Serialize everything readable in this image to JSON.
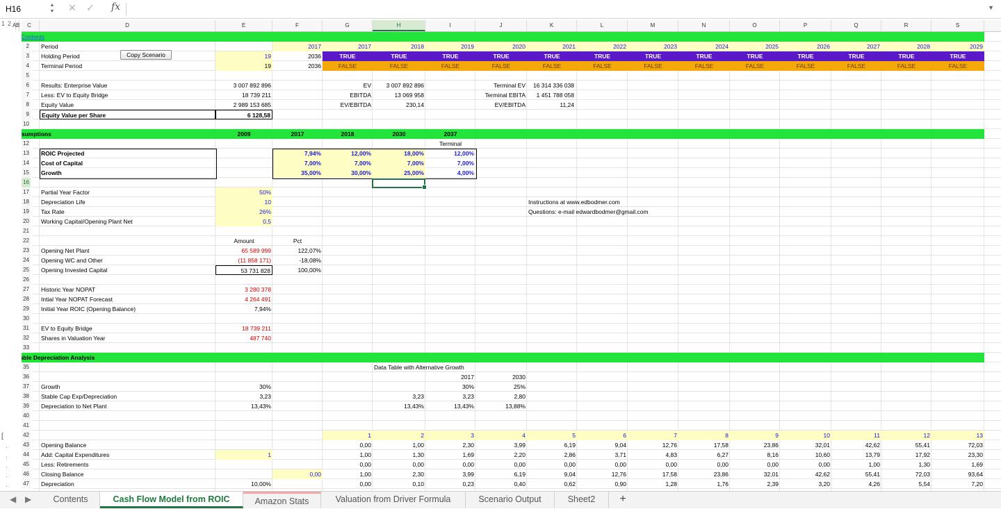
{
  "formula_bar": {
    "name_box": "H16",
    "fx": "fx",
    "value": ""
  },
  "outline_levels": [
    "1",
    "2"
  ],
  "columns": [
    "A",
    "B",
    "C",
    "D",
    "E",
    "F",
    "G",
    "H",
    "I",
    "J",
    "K",
    "L",
    "M",
    "N",
    "O",
    "P",
    "Q",
    "R",
    "S"
  ],
  "selected_column": "H",
  "selected_row": 16,
  "rows": [
    "1",
    "2",
    "3",
    "4",
    "5",
    "6",
    "7",
    "8",
    "9",
    "10",
    "11",
    "12",
    "13",
    "14",
    "15",
    "16",
    "17",
    "18",
    "19",
    "20",
    "21",
    "22",
    "23",
    "24",
    "25",
    "26",
    "27",
    "28",
    "29",
    "30",
    "31",
    "32",
    "33",
    "34",
    "35",
    "36",
    "37",
    "38",
    "39",
    "40",
    "41",
    "42",
    "43",
    "44",
    "45",
    "46",
    "47"
  ],
  "copy_button": "Copy Scenario",
  "colors": {
    "green_band": "#22e43a",
    "blue_band": "#5b18c8",
    "orange_band": "#f5a80a",
    "yellow_cell": "#fdfdc4",
    "selection": "#217346"
  },
  "header": {
    "contents_link": "Contents",
    "period_label": "Period",
    "holding_label": "Holding Period",
    "terminal_label": "Terminal Period",
    "holding_val": "19",
    "terminal_val": "19",
    "f2": "2017",
    "f3": "2036",
    "f4": "2036",
    "years": [
      "2017",
      "2018",
      "2019",
      "2020",
      "2021",
      "2022",
      "2023",
      "2024",
      "2025",
      "2026",
      "2027",
      "2028",
      "2029"
    ],
    "true_text": "TRUE",
    "false_text": "FALSE"
  },
  "results": {
    "ev_label": "Results: Enterprise Value",
    "bridge_label": "Less: EV to Equity Bridge",
    "equity_label": "Equity Value",
    "eps_label": "Equity Value per Share",
    "ev_val": "3 007 892 896",
    "bridge_val": "18 739 211",
    "equity_val": "2 989 153 685",
    "eps_val": "6 128,58",
    "g_ev": "EV",
    "g_ebitda": "EBITDA",
    "g_ratio": "EV/EBITDA",
    "h_ev": "3 007 892 896",
    "h_ebitda": "13 069 958",
    "h_ratio": "230,14",
    "j_tev": "Terminal EV",
    "j_tebitda": "Terminal EBITA",
    "j_ratio": "EV/EBITDA",
    "k_tev": "16 314 336 038",
    "k_tebitda": "1 451 788 058",
    "k_ratio": "11,24"
  },
  "assumptions": {
    "title": "Assumptions",
    "e11": "2009",
    "f11": "2017",
    "g11": "2018",
    "h11": "2030",
    "i11": "2037",
    "terminal_label": "Terminal",
    "roic_label": "ROIC Projected",
    "coc_label": "Cost of Capital",
    "growth_label": "Growth",
    "f13": "7,94%",
    "g13": "12,00%",
    "h13": "18,00%",
    "i13": "12,00%",
    "f14": "7,00%",
    "g14": "7,00%",
    "h14": "7,00%",
    "i14": "7,00%",
    "f15": "35,00%",
    "g15": "30,00%",
    "h15": "25,00%",
    "i15": "4,00%",
    "pyf_label": "Partial Year Factor",
    "pyf_val": "50%",
    "dep_label": "Depreciation Life",
    "dep_val": "10",
    "tax_label": "Tax Rate",
    "tax_val": "26%",
    "wc_label": "Working Capital/Opening Plant Net",
    "wc_val": "0,5",
    "instructions": "Instructions at www.edbodmer.com",
    "questions": "Questions: e-mail edwardbodmer@gmail.com"
  },
  "opening": {
    "amount_hdr": "Amount",
    "pct_hdr": "Pct",
    "plant_label": "Opening Net Plant",
    "plant_val": "65 589 999",
    "plant_pct": "122,07%",
    "wc_label": "Opening WC and Other",
    "wc_val": "(11 858 171)",
    "wc_pct": "-18,08%",
    "ic_label": "Opening Invested Capital",
    "ic_val": "53 731 828",
    "ic_pct": "100,00%",
    "nopat_label": "Historic Year NOPAT",
    "nopat_val": "3 280 378",
    "nopat_fc_label": "Intial Year NOPAT Forecast",
    "nopat_fc_val": "4 264 491",
    "roic_label": "Initial Year ROIC (Opening Balance)",
    "roic_val": "7,94%",
    "bridge_label": "EV to Equity Bridge",
    "bridge_val": "18 739 211",
    "shares_label": "Shares in Valuation Year",
    "shares_val": "487 740"
  },
  "stable": {
    "title": "Stable Depreciation Analysis",
    "dt_label": "Data Table with Alternative Growth",
    "i36": "2017",
    "j36": "2030",
    "growth_label": "Growth",
    "e37": "30%",
    "i37": "30%",
    "j37": "25%",
    "capex_label": "Stable Cap Exp/Depreciation",
    "e38": "3,23",
    "h38": "3,23",
    "i38": "3,23",
    "j38": "2,80",
    "dnp_label": "Depreciation to Net Plant",
    "e39": "13,43%",
    "h39": "13,43%",
    "i39": "13,43%",
    "j39": "13,88%"
  },
  "schedule": {
    "labels": [
      "Opening Balance",
      "Add: Capital Expenditures",
      "Less: Retirements",
      "Closing Balance",
      "Depreciation"
    ],
    "e44": "1",
    "f46": "0,00",
    "e47": "10,00%",
    "index": [
      "1",
      "2",
      "3",
      "4",
      "5",
      "6",
      "7",
      "8",
      "9",
      "10",
      "11",
      "12",
      "13"
    ],
    "opening": [
      "0,00",
      "1,00",
      "2,30",
      "3,99",
      "6,19",
      "9,04",
      "12,76",
      "17,58",
      "23,86",
      "32,01",
      "42,62",
      "55,41",
      "72,03"
    ],
    "capex": [
      "1,00",
      "1,30",
      "1,69",
      "2,20",
      "2,86",
      "3,71",
      "4,83",
      "6,27",
      "8,16",
      "10,60",
      "13,79",
      "17,92",
      "23,30"
    ],
    "retire": [
      "0,00",
      "0,00",
      "0,00",
      "0,00",
      "0,00",
      "0,00",
      "0,00",
      "0,00",
      "0,00",
      "0,00",
      "1,00",
      "1,30",
      "1,69"
    ],
    "closing": [
      "1,00",
      "2,30",
      "3,99",
      "6,19",
      "9,04",
      "12,76",
      "17,58",
      "23,86",
      "32,01",
      "42,62",
      "55,41",
      "72,03",
      "93,64"
    ],
    "dep": [
      "0,00",
      "0,10",
      "0,23",
      "0,40",
      "0,62",
      "0,90",
      "1,28",
      "1,76",
      "2,39",
      "3,20",
      "4,26",
      "5,54",
      "7,20"
    ]
  },
  "tabs": [
    "Contents",
    "Cash Flow Model from ROIC",
    "Amazon Stats",
    "Valuation from Driver Formula",
    "Scenario Output",
    "Sheet2",
    "+"
  ],
  "active_tab": "Cash Flow Model from ROIC"
}
